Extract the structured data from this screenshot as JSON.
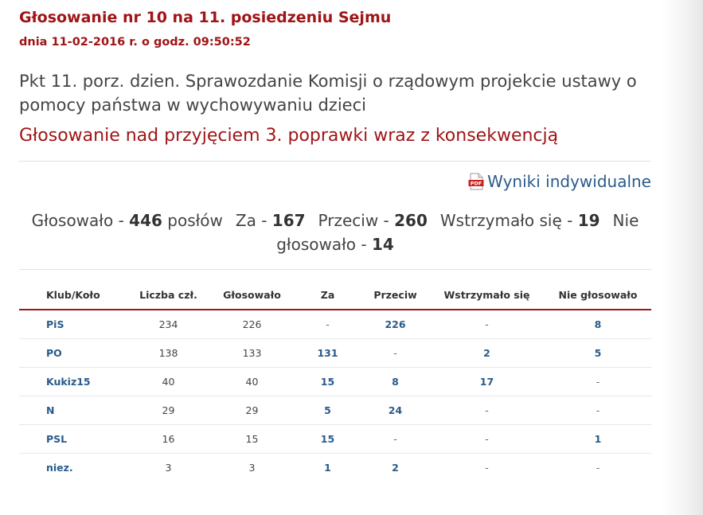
{
  "header": {
    "title": "Głosowanie nr 10 na 11. posiedzeniu Sejmu",
    "date": "dnia 11-02-2016 r. o godz. 09:50:52"
  },
  "topic": "Pkt 11. porz. dzien. Sprawozdanie Komisji o rządowym projekcie ustawy o pomocy państwa w wychowywaniu dzieci",
  "subject": "Głosowanie nad przyjęciem 3. poprawki wraz z konsekwencją",
  "pdf_link": {
    "icon": "pdf-icon",
    "label": "Wyniki indywidualne"
  },
  "summary": {
    "voted_label": "Głosowało - ",
    "voted": "446",
    "voted_suffix": " posłów",
    "za_label": "Za - ",
    "za": "167",
    "przeciw_label": "Przeciw - ",
    "przeciw": "260",
    "wstrzymalo_label": "Wstrzymało się - ",
    "wstrzymalo": "19",
    "nie_glosowalo_label": "Nie głosowało - ",
    "nie_glosowalo": "14"
  },
  "table": {
    "headers": [
      "Klub/Koło",
      "Liczba czł.",
      "Głosowało",
      "Za",
      "Przeciw",
      "Wstrzymało się",
      "Nie głosowało"
    ],
    "rows": [
      [
        "PiS",
        "234",
        "226",
        "-",
        "226",
        "-",
        "8"
      ],
      [
        "PO",
        "138",
        "133",
        "131",
        "-",
        "2",
        "5"
      ],
      [
        "Kukiz15",
        "40",
        "40",
        "15",
        "8",
        "17",
        "-"
      ],
      [
        "N",
        "29",
        "29",
        "5",
        "24",
        "-",
        "-"
      ],
      [
        "PSL",
        "16",
        "15",
        "15",
        "-",
        "-",
        "1"
      ],
      [
        "niez.",
        "3",
        "3",
        "1",
        "2",
        "-",
        "-"
      ]
    ]
  },
  "colors": {
    "accent": "#a01416",
    "link": "#2a5b8b",
    "text": "#444444"
  }
}
